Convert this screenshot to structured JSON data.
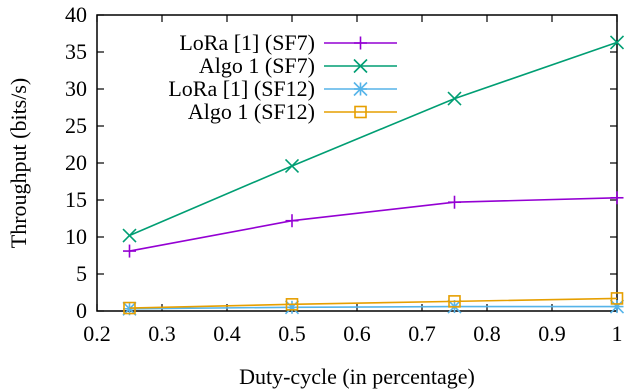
{
  "chart_data": {
    "type": "line",
    "xlabel": "Duty-cycle (in percentage)",
    "ylabel": "Throughput (bits/s)",
    "xlim": [
      0.2,
      1.0
    ],
    "ylim": [
      0,
      40
    ],
    "x_ticks": [
      "0.2",
      "0.3",
      "0.4",
      "0.5",
      "0.6",
      "0.7",
      "0.8",
      "0.9",
      "1"
    ],
    "y_ticks": [
      "0",
      "5",
      "10",
      "15",
      "20",
      "25",
      "30",
      "35",
      "40"
    ],
    "grid": false,
    "legend_position": "top-left",
    "series": [
      {
        "name": "LoRa [1] (SF7)",
        "color": "#9400d3",
        "marker": "plus",
        "x": [
          0.25,
          0.5,
          0.75,
          1.0
        ],
        "y": [
          8.1,
          12.2,
          14.7,
          15.3
        ]
      },
      {
        "name": "Algo 1 (SF7)",
        "color": "#009e73",
        "marker": "cross",
        "x": [
          0.25,
          0.5,
          0.75,
          1.0
        ],
        "y": [
          10.2,
          19.6,
          28.7,
          36.3
        ]
      },
      {
        "name": "LoRa [1] (SF12)",
        "color": "#56b4e9",
        "marker": "star",
        "x": [
          0.25,
          0.5,
          0.75,
          1.0
        ],
        "y": [
          0.3,
          0.5,
          0.6,
          0.6
        ]
      },
      {
        "name": "Algo 1 (SF12)",
        "color": "#e69f00",
        "marker": "square",
        "x": [
          0.25,
          0.5,
          0.75,
          1.0
        ],
        "y": [
          0.4,
          0.9,
          1.3,
          1.7
        ]
      }
    ]
  }
}
